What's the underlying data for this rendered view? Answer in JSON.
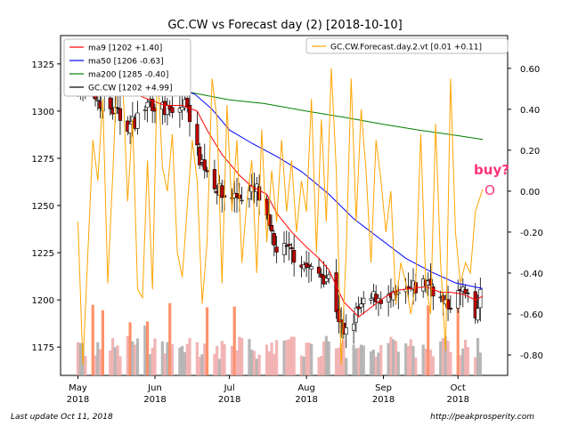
{
  "footer": {
    "last_update": "Last update Oct 11, 2018",
    "source": "http://peakprosperity.com"
  },
  "chart_data": {
    "type": "candlestick",
    "title": "GC.CW vs Forecast day (2)  [2018-10-10]",
    "annotation": {
      "text": "buy?",
      "marker": "O",
      "color": "#ff3377"
    },
    "x_axis": {
      "range": [
        "2018-04-24",
        "2018-10-21"
      ],
      "ticks": [
        {
          "date": "2018-05-01",
          "label": "May\n2018"
        },
        {
          "date": "2018-06-01",
          "label": "Jun\n2018"
        },
        {
          "date": "2018-07-01",
          "label": "Jul\n2018"
        },
        {
          "date": "2018-08-01",
          "label": "Aug\n2018"
        },
        {
          "date": "2018-09-01",
          "label": "Sep\n2018"
        },
        {
          "date": "2018-10-01",
          "label": "Oct\n2018"
        }
      ]
    },
    "y_left": {
      "range": [
        1160,
        1340
      ],
      "ticks": [
        1175,
        1200,
        1225,
        1250,
        1275,
        1300,
        1325
      ]
    },
    "y_right": {
      "range": [
        -0.9,
        0.76
      ],
      "ticks": [
        -0.8,
        -0.6,
        -0.4,
        -0.2,
        0.0,
        0.2,
        0.4,
        0.6
      ],
      "tick_labels": [
        "-0.80",
        "-0.60",
        "-0.40",
        "-0.20",
        "0.00",
        "0.20",
        "0.40",
        "0.60"
      ]
    },
    "legend_left": [
      {
        "label": "ma9 [1202 +1.40]",
        "color": "#ff0000"
      },
      {
        "label": "ma50 [1206 -0.63]",
        "color": "#0000ff"
      },
      {
        "label": "ma200 [1285 -0.40]",
        "color": "#008000"
      },
      {
        "label": "GC.CW [1202 +4.99]",
        "color": "#000000"
      }
    ],
    "legend_right": [
      {
        "label": "GC.CW.Forecast.day.2.vt [0.01 +0.11]",
        "color": "#ffa500"
      }
    ],
    "colors": {
      "up": "#ffffff",
      "down": "#c00000",
      "wick": "#000000",
      "vol_up": "#aaaaaa",
      "vol_down": "#f0a8a8",
      "vol_accent": "#ff7f50",
      "forecast": "#ffa500"
    },
    "ohlc": [],
    "series": {
      "ma9": {
        "color": "#ff0000",
        "points": [
          [
            "2018-05-17",
            1315
          ],
          [
            "2018-05-22",
            1310
          ],
          [
            "2018-05-30",
            1306
          ],
          [
            "2018-06-05",
            1303
          ],
          [
            "2018-06-12",
            1303
          ],
          [
            "2018-06-18",
            1300
          ],
          [
            "2018-06-22",
            1290
          ],
          [
            "2018-06-28",
            1277
          ],
          [
            "2018-07-05",
            1266
          ],
          [
            "2018-07-10",
            1260
          ],
          [
            "2018-07-16",
            1256
          ],
          [
            "2018-07-20",
            1246
          ],
          [
            "2018-07-26",
            1236
          ],
          [
            "2018-08-01",
            1228
          ],
          [
            "2018-08-06",
            1222
          ],
          [
            "2018-08-10",
            1216
          ],
          [
            "2018-08-16",
            1199
          ],
          [
            "2018-08-22",
            1191
          ],
          [
            "2018-08-27",
            1196
          ],
          [
            "2018-09-01",
            1201
          ],
          [
            "2018-09-06",
            1205
          ],
          [
            "2018-09-12",
            1206
          ],
          [
            "2018-09-18",
            1207
          ],
          [
            "2018-09-24",
            1204
          ],
          [
            "2018-09-28",
            1204
          ],
          [
            "2018-10-03",
            1203
          ],
          [
            "2018-10-08",
            1200
          ],
          [
            "2018-10-11",
            1202
          ]
        ]
      },
      "ma50": {
        "color": "#0000ff",
        "points": [
          [
            "2018-06-10",
            1312
          ],
          [
            "2018-06-17",
            1309
          ],
          [
            "2018-06-24",
            1301
          ],
          [
            "2018-07-01",
            1290
          ],
          [
            "2018-07-10",
            1283
          ],
          [
            "2018-07-20",
            1276
          ],
          [
            "2018-07-30",
            1268
          ],
          [
            "2018-08-10",
            1256
          ],
          [
            "2018-08-20",
            1243
          ],
          [
            "2018-08-30",
            1233
          ],
          [
            "2018-09-10",
            1222
          ],
          [
            "2018-09-20",
            1215
          ],
          [
            "2018-09-30",
            1209
          ],
          [
            "2018-10-11",
            1206
          ]
        ]
      },
      "ma200": {
        "color": "#008000",
        "points": [
          [
            "2018-06-03",
            1312
          ],
          [
            "2018-06-15",
            1310
          ],
          [
            "2018-07-01",
            1306
          ],
          [
            "2018-07-15",
            1304
          ],
          [
            "2018-08-01",
            1300
          ],
          [
            "2018-08-15",
            1297
          ],
          [
            "2018-09-01",
            1293
          ],
          [
            "2018-09-15",
            1290
          ],
          [
            "2018-10-01",
            1287
          ],
          [
            "2018-10-11",
            1285
          ]
        ]
      },
      "forecast": {
        "color": "#ffa500",
        "axis": "right",
        "points": [
          [
            "2018-05-01",
            -0.15
          ],
          [
            "2018-05-03",
            -0.85
          ],
          [
            "2018-05-05",
            -0.3
          ],
          [
            "2018-05-07",
            0.25
          ],
          [
            "2018-05-09",
            0.05
          ],
          [
            "2018-05-11",
            0.45
          ],
          [
            "2018-05-13",
            -0.45
          ],
          [
            "2018-05-15",
            0.08
          ],
          [
            "2018-05-17",
            0.65
          ],
          [
            "2018-05-19",
            0.55
          ],
          [
            "2018-05-21",
            -0.05
          ],
          [
            "2018-05-23",
            0.35
          ],
          [
            "2018-05-25",
            -0.48
          ],
          [
            "2018-05-27",
            -0.52
          ],
          [
            "2018-05-29",
            0.15
          ],
          [
            "2018-05-31",
            -0.48
          ],
          [
            "2018-06-02",
            0.62
          ],
          [
            "2018-06-04",
            0.12
          ],
          [
            "2018-06-06",
            0.0
          ],
          [
            "2018-06-08",
            0.28
          ],
          [
            "2018-06-10",
            -0.3
          ],
          [
            "2018-06-12",
            -0.42
          ],
          [
            "2018-06-14",
            -0.08
          ],
          [
            "2018-06-16",
            0.25
          ],
          [
            "2018-06-18",
            0.05
          ],
          [
            "2018-06-20",
            -0.55
          ],
          [
            "2018-06-22",
            -0.25
          ],
          [
            "2018-06-24",
            0.55
          ],
          [
            "2018-06-26",
            0.35
          ],
          [
            "2018-06-28",
            -0.45
          ],
          [
            "2018-06-30",
            0.42
          ],
          [
            "2018-07-02",
            -0.1
          ],
          [
            "2018-07-04",
            0.25
          ],
          [
            "2018-07-06",
            -0.35
          ],
          [
            "2018-07-08",
            -0.05
          ],
          [
            "2018-07-10",
            0.15
          ],
          [
            "2018-07-12",
            -0.4
          ],
          [
            "2018-07-14",
            0.3
          ],
          [
            "2018-07-16",
            -0.25
          ],
          [
            "2018-07-18",
            0.1
          ],
          [
            "2018-07-20",
            -0.15
          ],
          [
            "2018-07-22",
            0.25
          ],
          [
            "2018-07-24",
            -0.1
          ],
          [
            "2018-07-26",
            0.15
          ],
          [
            "2018-07-28",
            -0.2
          ],
          [
            "2018-07-30",
            0.05
          ],
          [
            "2018-08-01",
            -0.1
          ],
          [
            "2018-08-03",
            0.45
          ],
          [
            "2018-08-05",
            -0.3
          ],
          [
            "2018-08-07",
            0.35
          ],
          [
            "2018-08-09",
            -0.15
          ],
          [
            "2018-08-11",
            0.6
          ],
          [
            "2018-08-13",
            0.1
          ],
          [
            "2018-08-15",
            -0.85
          ],
          [
            "2018-08-17",
            -0.3
          ],
          [
            "2018-08-19",
            0.55
          ],
          [
            "2018-08-21",
            -0.15
          ],
          [
            "2018-08-23",
            0.4
          ],
          [
            "2018-08-25",
            0.1
          ],
          [
            "2018-08-27",
            -0.35
          ],
          [
            "2018-08-29",
            0.25
          ],
          [
            "2018-08-31",
            0.05
          ],
          [
            "2018-09-02",
            -0.2
          ],
          [
            "2018-09-04",
            0.0
          ],
          [
            "2018-09-06",
            -0.55
          ],
          [
            "2018-09-08",
            -0.35
          ],
          [
            "2018-09-10",
            -0.45
          ],
          [
            "2018-09-12",
            -0.6
          ],
          [
            "2018-09-14",
            -0.45
          ],
          [
            "2018-09-16",
            0.28
          ],
          [
            "2018-09-18",
            -0.45
          ],
          [
            "2018-09-20",
            -0.6
          ],
          [
            "2018-09-22",
            0.33
          ],
          [
            "2018-09-24",
            -0.35
          ],
          [
            "2018-09-26",
            -0.78
          ],
          [
            "2018-09-28",
            0.55
          ],
          [
            "2018-09-30",
            -0.2
          ],
          [
            "2018-10-02",
            -0.45
          ],
          [
            "2018-10-04",
            -0.35
          ],
          [
            "2018-10-06",
            -0.4
          ],
          [
            "2018-10-08",
            -0.1
          ],
          [
            "2018-10-11",
            0.01
          ]
        ]
      }
    },
    "volume": {
      "range": [
        0,
        300
      ],
      "base_y": 0,
      "values": []
    }
  }
}
